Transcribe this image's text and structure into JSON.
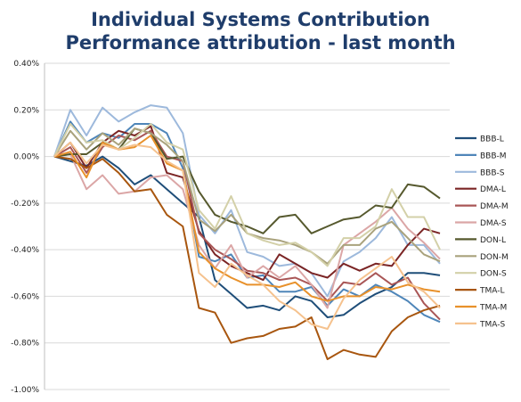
{
  "chart_data": {
    "type": "line",
    "title": [
      "Individual Systems Contribution",
      "Performance attribution - last month"
    ],
    "xlabel": "",
    "ylabel": "",
    "ylim": [
      -1.0,
      0.4
    ],
    "yticks": [
      "0.40%",
      "0.20%",
      "0.00%",
      "-0.20%",
      "-0.40%",
      "-0.60%",
      "-0.80%",
      "-1.00%"
    ],
    "ytick_values": [
      0.4,
      0.2,
      0.0,
      -0.2,
      -0.4,
      -0.6,
      -0.8,
      -1.0
    ],
    "grid": true,
    "legend_position": "right",
    "series": [
      {
        "name": "BBB-L",
        "color": "#1f4e79",
        "values": [
          0,
          -0.02,
          -0.04,
          0.0,
          -0.05,
          -0.12,
          -0.08,
          -0.14,
          -0.2,
          -0.26,
          -0.53,
          -0.59,
          -0.65,
          -0.64,
          -0.66,
          -0.6,
          -0.62,
          -0.69,
          -0.68,
          -0.63,
          -0.59,
          -0.56,
          -0.5,
          -0.5,
          -0.51
        ]
      },
      {
        "name": "BBB-M",
        "color": "#4f86b9",
        "values": [
          0,
          0.15,
          0.06,
          0.1,
          0.08,
          0.14,
          0.14,
          0.1,
          -0.05,
          -0.43,
          -0.45,
          -0.42,
          -0.52,
          -0.51,
          -0.58,
          -0.58,
          -0.56,
          -0.64,
          -0.57,
          -0.6,
          -0.55,
          -0.58,
          -0.62,
          -0.68,
          -0.71
        ]
      },
      {
        "name": "BBB-S",
        "color": "#9db9dc",
        "values": [
          0,
          0.2,
          0.09,
          0.21,
          0.15,
          0.19,
          0.22,
          0.21,
          0.1,
          -0.25,
          -0.33,
          -0.23,
          -0.41,
          -0.43,
          -0.47,
          -0.46,
          -0.5,
          -0.6,
          -0.45,
          -0.41,
          -0.35,
          -0.26,
          -0.38,
          -0.38,
          -0.46
        ]
      },
      {
        "name": "DMA-L",
        "color": "#7b2525",
        "values": [
          0,
          0.06,
          -0.05,
          0.06,
          0.11,
          0.09,
          0.13,
          -0.07,
          -0.09,
          -0.32,
          -0.42,
          -0.47,
          -0.5,
          -0.53,
          -0.42,
          -0.46,
          -0.5,
          -0.52,
          -0.46,
          -0.49,
          -0.46,
          -0.47,
          -0.38,
          -0.31,
          -0.33
        ]
      },
      {
        "name": "DMA-M",
        "color": "#a95656",
        "values": [
          0,
          0.04,
          -0.07,
          0.04,
          0.09,
          0.07,
          0.11,
          0.0,
          -0.02,
          -0.33,
          -0.4,
          -0.44,
          -0.49,
          -0.5,
          -0.53,
          -0.52,
          -0.55,
          -0.62,
          -0.54,
          -0.55,
          -0.5,
          -0.55,
          -0.52,
          -0.63,
          -0.7
        ]
      },
      {
        "name": "DMA-S",
        "color": "#dba6a6",
        "values": [
          0,
          0.01,
          -0.14,
          -0.08,
          -0.16,
          -0.15,
          -0.09,
          -0.08,
          -0.14,
          -0.38,
          -0.48,
          -0.38,
          -0.52,
          -0.47,
          -0.52,
          -0.47,
          -0.55,
          -0.65,
          -0.38,
          -0.33,
          -0.28,
          -0.22,
          -0.31,
          -0.37,
          -0.44
        ]
      },
      {
        "name": "DON-L",
        "color": "#56592e",
        "values": [
          0,
          0.01,
          0.01,
          0.06,
          0.03,
          0.12,
          0.1,
          -0.01,
          0.0,
          -0.15,
          -0.25,
          -0.28,
          -0.3,
          -0.33,
          -0.26,
          -0.25,
          -0.33,
          -0.3,
          -0.27,
          -0.26,
          -0.21,
          -0.22,
          -0.12,
          -0.13,
          -0.18
        ]
      },
      {
        "name": "DON-M",
        "color": "#a9a27c",
        "values": [
          0,
          0.11,
          0.03,
          0.1,
          0.05,
          0.12,
          0.1,
          0.05,
          -0.02,
          -0.27,
          -0.32,
          -0.25,
          -0.33,
          -0.35,
          -0.36,
          -0.38,
          -0.41,
          -0.46,
          -0.38,
          -0.38,
          -0.31,
          -0.28,
          -0.35,
          -0.42,
          -0.45
        ]
      },
      {
        "name": "DON-S",
        "color": "#d3d0a8",
        "values": [
          0,
          0.14,
          0.06,
          0.07,
          0.03,
          0.08,
          0.14,
          0.06,
          0.03,
          -0.23,
          -0.31,
          -0.17,
          -0.33,
          -0.36,
          -0.38,
          -0.37,
          -0.41,
          -0.47,
          -0.35,
          -0.35,
          -0.3,
          -0.14,
          -0.26,
          -0.26,
          -0.4
        ]
      },
      {
        "name": "TMA-L",
        "color": "#a8560f",
        "values": [
          0,
          -0.01,
          -0.05,
          -0.01,
          -0.07,
          -0.15,
          -0.14,
          -0.25,
          -0.3,
          -0.65,
          -0.67,
          -0.8,
          -0.78,
          -0.77,
          -0.74,
          -0.73,
          -0.69,
          -0.87,
          -0.83,
          -0.85,
          -0.86,
          -0.75,
          -0.69,
          -0.66,
          -0.64
        ]
      },
      {
        "name": "TMA-M",
        "color": "#e8912b",
        "values": [
          0,
          0.02,
          -0.09,
          0.06,
          0.03,
          0.04,
          0.09,
          -0.03,
          -0.06,
          -0.41,
          -0.48,
          -0.52,
          -0.55,
          -0.55,
          -0.56,
          -0.54,
          -0.6,
          -0.62,
          -0.6,
          -0.6,
          -0.56,
          -0.57,
          -0.55,
          -0.57,
          -0.58
        ]
      },
      {
        "name": "TMA-S",
        "color": "#f5c28e",
        "values": [
          0,
          0.06,
          -0.03,
          0.05,
          0.03,
          0.05,
          0.04,
          -0.02,
          -0.06,
          -0.5,
          -0.56,
          -0.46,
          -0.51,
          -0.55,
          -0.62,
          -0.66,
          -0.72,
          -0.74,
          -0.61,
          -0.53,
          -0.48,
          -0.43,
          -0.54,
          -0.58,
          -0.65
        ]
      }
    ]
  }
}
